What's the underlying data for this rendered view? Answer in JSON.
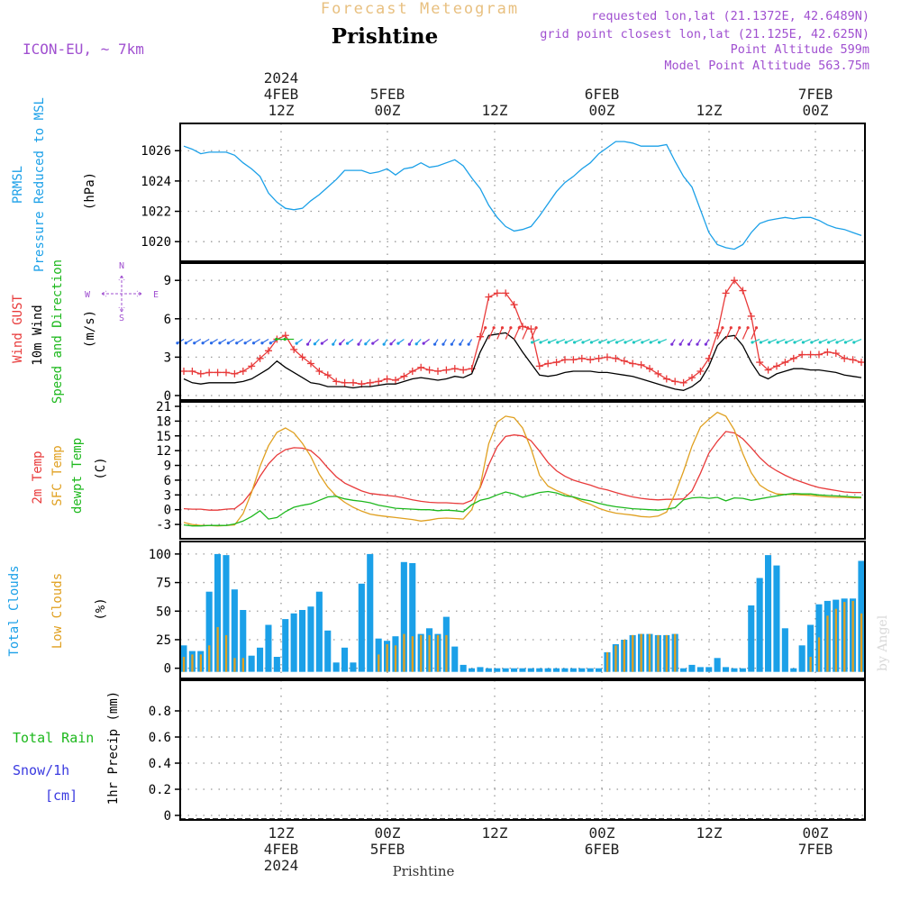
{
  "header": {
    "title": "Forecast Meteogram",
    "location": "Prishtine",
    "model": "ICON-EU, ~ 7km",
    "requested": "requested lon,lat (21.1372E, 42.6489N)",
    "gridpoint": "grid point closest lon,lat (21.125E, 42.625N)",
    "point_altitude": "Point Altitude 599m",
    "model_altitude": "Model Point Altitude 563.75m",
    "watermark": "by Angel",
    "footer_location": "Prishtine"
  },
  "colors": {
    "pressure": "#1ba0e8",
    "gust": "#e83a3a",
    "wind": "#000000",
    "dir": "#1db81d",
    "sfc": "#e0a020",
    "dewpt": "#1db81d",
    "total_clouds": "#1ba0e8",
    "low_clouds": "#e0a020",
    "rain": "#1db81d",
    "snow": "#3a3ae0",
    "annot": "#a050d0",
    "title_orange": "#e8c080"
  },
  "chart_data": [
    {
      "id": "pressure",
      "type": "line",
      "ylabel": [
        "PRMSL",
        "Pressure Reduced to MSL"
      ],
      "units": "(hPa)",
      "ylim": [
        1019,
        1027.5
      ],
      "yticks": [
        1020,
        1022,
        1024,
        1026
      ],
      "series": [
        {
          "name": "PRMSL",
          "values": [
            1026.3,
            1026.1,
            1025.8,
            1025.9,
            1025.9,
            1025.9,
            1025.7,
            1025.2,
            1024.8,
            1024.3,
            1023.2,
            1022.6,
            1022.2,
            1022.1,
            1022.2,
            1022.7,
            1023.1,
            1023.6,
            1024.1,
            1024.7,
            1024.7,
            1024.7,
            1024.5,
            1024.6,
            1024.8,
            1024.4,
            1024.8,
            1024.9,
            1025.2,
            1024.9,
            1025.0,
            1025.2,
            1025.4,
            1025.0,
            1024.2,
            1023.5,
            1022.4,
            1021.6,
            1021.0,
            1020.7,
            1020.8,
            1021.0,
            1021.7,
            1022.5,
            1023.3,
            1023.9,
            1024.3,
            1024.8,
            1025.2,
            1025.8,
            1026.2,
            1026.6,
            1026.6,
            1026.5,
            1026.3,
            1026.3,
            1026.3,
            1026.4,
            1025.3,
            1024.3,
            1023.6,
            1022.1,
            1020.6,
            1019.8,
            1019.6,
            1019.5,
            1019.8,
            1020.6,
            1021.2,
            1021.4,
            1021.5,
            1021.6,
            1021.5,
            1021.6,
            1021.6,
            1021.4,
            1021.1,
            1020.9,
            1020.8,
            1020.6,
            1020.4
          ]
        }
      ]
    },
    {
      "id": "wind",
      "type": "line",
      "ylabel": [
        "Wind GUST",
        "10m Wind",
        "Speed and Direction"
      ],
      "units": "(m/s)",
      "compass": {
        "n": "N",
        "s": "S",
        "e": "E",
        "w": "W"
      },
      "ylim": [
        0,
        10
      ],
      "yticks": [
        0,
        3,
        6,
        9
      ],
      "series": [
        {
          "name": "Wind GUST",
          "values": [
            1.9,
            1.9,
            1.7,
            1.8,
            1.8,
            1.8,
            1.7,
            1.9,
            2.3,
            2.9,
            3.5,
            4.4,
            4.7,
            3.6,
            3.0,
            2.5,
            1.9,
            1.6,
            1.1,
            1.0,
            1.0,
            0.9,
            1.0,
            1.1,
            1.3,
            1.2,
            1.5,
            1.9,
            2.2,
            2.0,
            1.9,
            2.0,
            2.1,
            2.0,
            2.1,
            4.6,
            7.7,
            8.0,
            8.0,
            7.1,
            5.4,
            5.2,
            2.3,
            2.5,
            2.6,
            2.8,
            2.8,
            2.9,
            2.8,
            2.9,
            3.0,
            2.9,
            2.7,
            2.5,
            2.4,
            2.1,
            1.7,
            1.3,
            1.1,
            1.0,
            1.4,
            1.9,
            2.9,
            4.9,
            8.0,
            9.0,
            8.2,
            6.2,
            2.6,
            2.0,
            2.3,
            2.6,
            2.9,
            3.2,
            3.2,
            3.2,
            3.4,
            3.3,
            2.9,
            2.8,
            2.6
          ]
        },
        {
          "name": "10m Wind",
          "values": [
            1.3,
            1.0,
            0.9,
            1.0,
            1.0,
            1.0,
            1.0,
            1.1,
            1.3,
            1.7,
            2.1,
            2.7,
            2.2,
            1.8,
            1.4,
            1.0,
            0.9,
            0.7,
            0.7,
            0.7,
            0.6,
            0.7,
            0.7,
            0.8,
            0.9,
            0.9,
            1.1,
            1.3,
            1.4,
            1.3,
            1.2,
            1.3,
            1.5,
            1.4,
            1.7,
            3.4,
            4.7,
            4.8,
            4.9,
            4.4,
            3.4,
            2.5,
            1.6,
            1.5,
            1.6,
            1.8,
            1.9,
            1.9,
            1.9,
            1.8,
            1.8,
            1.7,
            1.6,
            1.5,
            1.3,
            1.1,
            0.9,
            0.7,
            0.5,
            0.4,
            0.7,
            1.2,
            2.3,
            3.9,
            4.6,
            4.7,
            3.9,
            2.6,
            1.6,
            1.3,
            1.7,
            1.9,
            2.1,
            2.1,
            2.0,
            2.0,
            1.9,
            1.8,
            1.6,
            1.5,
            1.4
          ]
        }
      ]
    },
    {
      "id": "temperature",
      "type": "line",
      "ylabel": [
        "2m Temp",
        "SFC Temp",
        "dewpt Temp"
      ],
      "units": "(C)",
      "ylim": [
        -5,
        21
      ],
      "yticks": [
        -3,
        0,
        3,
        6,
        9,
        12,
        15,
        18,
        21
      ],
      "series": [
        {
          "name": "2m Temp",
          "values": [
            0.2,
            0.1,
            0.1,
            -0.1,
            -0.1,
            0.1,
            0.2,
            1.5,
            3.7,
            6.8,
            9.3,
            11.1,
            12.2,
            12.6,
            12.5,
            12.0,
            10.5,
            8.5,
            6.7,
            5.4,
            4.6,
            3.8,
            3.3,
            3.1,
            2.9,
            2.7,
            2.4,
            2.0,
            1.7,
            1.5,
            1.4,
            1.4,
            1.3,
            1.2,
            1.9,
            4.5,
            9.1,
            12.8,
            14.9,
            15.2,
            15.0,
            14.0,
            11.9,
            9.6,
            7.9,
            6.8,
            6.0,
            5.5,
            5.0,
            4.4,
            4.0,
            3.5,
            3.0,
            2.6,
            2.3,
            2.1,
            2.0,
            2.1,
            2.1,
            2.2,
            3.8,
            7.4,
            11.5,
            13.9,
            15.9,
            15.6,
            14.4,
            12.6,
            10.6,
            9.0,
            7.9,
            7.0,
            6.2,
            5.6,
            5.0,
            4.5,
            4.2,
            3.9,
            3.6,
            3.5,
            3.5
          ]
        },
        {
          "name": "SFC Temp",
          "values": [
            -2.6,
            -3.0,
            -3.2,
            -3.2,
            -3.3,
            -3.2,
            -3.1,
            -0.8,
            3.5,
            8.8,
            13.0,
            15.7,
            16.6,
            15.6,
            13.5,
            10.8,
            7.2,
            4.6,
            2.8,
            1.5,
            0.5,
            -0.3,
            -0.9,
            -1.2,
            -1.4,
            -1.6,
            -1.8,
            -2.0,
            -2.3,
            -2.1,
            -1.8,
            -1.7,
            -1.8,
            -1.9,
            0.0,
            4.8,
            13.4,
            17.8,
            19.0,
            18.7,
            16.6,
            12.4,
            7.0,
            4.8,
            3.9,
            3.2,
            2.5,
            1.7,
            1.1,
            0.3,
            -0.3,
            -0.7,
            -0.9,
            -1.1,
            -1.4,
            -1.5,
            -1.3,
            -0.5,
            3.2,
            7.8,
            12.9,
            16.8,
            18.4,
            19.8,
            19.0,
            16.2,
            11.4,
            7.5,
            5.0,
            3.9,
            3.2,
            3.1,
            3.1,
            3.0,
            2.9,
            2.7,
            2.6,
            2.5,
            2.5,
            2.4,
            2.4
          ]
        },
        {
          "name": "dewpt Temp",
          "values": [
            -3.1,
            -3.3,
            -3.3,
            -3.2,
            -3.2,
            -3.2,
            -2.9,
            -2.3,
            -1.4,
            -0.2,
            -1.9,
            -1.6,
            -0.4,
            0.5,
            0.9,
            1.2,
            1.9,
            2.6,
            2.7,
            2.2,
            1.9,
            1.7,
            1.4,
            0.9,
            0.6,
            0.3,
            0.2,
            0.1,
            0.0,
            0.0,
            -0.2,
            -0.1,
            -0.2,
            -0.4,
            1.0,
            1.9,
            2.3,
            3.0,
            3.6,
            3.2,
            2.5,
            3.0,
            3.5,
            3.7,
            3.4,
            2.8,
            2.6,
            2.1,
            1.8,
            1.3,
            0.9,
            0.6,
            0.4,
            0.2,
            0.1,
            0.0,
            -0.1,
            0.1,
            0.4,
            2.0,
            2.4,
            2.5,
            2.3,
            2.5,
            1.8,
            2.4,
            2.3,
            1.9,
            2.2,
            2.5,
            2.8,
            3.1,
            3.3,
            3.2,
            3.2,
            3.0,
            2.9,
            2.8,
            2.7,
            2.6,
            2.5
          ]
        }
      ]
    },
    {
      "id": "clouds",
      "type": "bar",
      "ylabel": [
        "Total Clouds",
        "Low Clouds"
      ],
      "units": "(%)",
      "ylim": [
        -5,
        107
      ],
      "yticks": [
        0,
        25,
        50,
        75,
        100
      ],
      "series": [
        {
          "name": "Total Clouds",
          "values": [
            20,
            15,
            15,
            67,
            100,
            99,
            69,
            51,
            11,
            18,
            38,
            10,
            43,
            48,
            51,
            54,
            67,
            33,
            5,
            18,
            5,
            74,
            100,
            26,
            24,
            28,
            93,
            92,
            30,
            35,
            30,
            45,
            19,
            3,
            0,
            1,
            0,
            0,
            0,
            0,
            0,
            0,
            0,
            0,
            0,
            0,
            0,
            0,
            0,
            0,
            14,
            21,
            25,
            29,
            30,
            30,
            29,
            29,
            30,
            0,
            3,
            1,
            1,
            9,
            1,
            0,
            0,
            55,
            79,
            99,
            90,
            35,
            0,
            20,
            38,
            56,
            59,
            60,
            61,
            61,
            94
          ]
        },
        {
          "name": "Low Clouds",
          "values": [
            10,
            12,
            12,
            20,
            36,
            29,
            9,
            9,
            0,
            0,
            0,
            0,
            0,
            0,
            0,
            0,
            0,
            0,
            0,
            0,
            0,
            0,
            0,
            12,
            21,
            20,
            30,
            28,
            29,
            29,
            29,
            29,
            0,
            0,
            0,
            0,
            0,
            0,
            0,
            0,
            0,
            0,
            0,
            0,
            0,
            0,
            0,
            0,
            0,
            0,
            14,
            20,
            25,
            29,
            30,
            30,
            29,
            29,
            30,
            0,
            0,
            0,
            0,
            0,
            0,
            0,
            0,
            0,
            0,
            0,
            0,
            0,
            0,
            0,
            10,
            27,
            46,
            52,
            58,
            59,
            48
          ]
        }
      ]
    },
    {
      "id": "precip",
      "type": "bar",
      "ylabel": [
        "1hr Precip (mm)"
      ],
      "left_labels": {
        "rain": "Total  Rain",
        "snow": "Snow/1h",
        "cm": "[cm]"
      },
      "ylim": [
        0,
        1
      ],
      "yticks": [
        0,
        0.2,
        0.4,
        0.6,
        0.8
      ],
      "series": [
        {
          "name": "Total Rain",
          "values": [
            0,
            0,
            0,
            0,
            0,
            0,
            0,
            0,
            0,
            0,
            0,
            0,
            0,
            0,
            0,
            0,
            0,
            0,
            0,
            0,
            0,
            0,
            0,
            0,
            0,
            0,
            0,
            0,
            0,
            0,
            0,
            0,
            0,
            0,
            0,
            0,
            0,
            0,
            0,
            0,
            0,
            0,
            0,
            0,
            0,
            0,
            0,
            0,
            0,
            0,
            0,
            0,
            0,
            0,
            0,
            0,
            0,
            0,
            0,
            0,
            0,
            0,
            0,
            0,
            0,
            0,
            0,
            0,
            0,
            0,
            0,
            0,
            0,
            0,
            0,
            0,
            0,
            0,
            0,
            0,
            0
          ]
        }
      ]
    }
  ],
  "time_axis": {
    "top_ticks": [
      {
        "lines": [
          "2024",
          "4FEB",
          "12Z"
        ]
      },
      {
        "lines": [
          "5FEB",
          "00Z"
        ]
      },
      {
        "lines": [
          "12Z"
        ]
      },
      {
        "lines": [
          "6FEB",
          "00Z"
        ]
      },
      {
        "lines": [
          "12Z"
        ]
      },
      {
        "lines": [
          "7FEB",
          "00Z"
        ]
      }
    ],
    "bottom_ticks": [
      {
        "lines": [
          "12Z",
          "4FEB",
          "2024"
        ]
      },
      {
        "lines": [
          "00Z",
          "5FEB"
        ]
      },
      {
        "lines": [
          "12Z"
        ]
      },
      {
        "lines": [
          "00Z",
          "6FEB"
        ]
      },
      {
        "lines": [
          "12Z"
        ]
      },
      {
        "lines": [
          "00Z",
          "7FEB"
        ]
      }
    ]
  }
}
